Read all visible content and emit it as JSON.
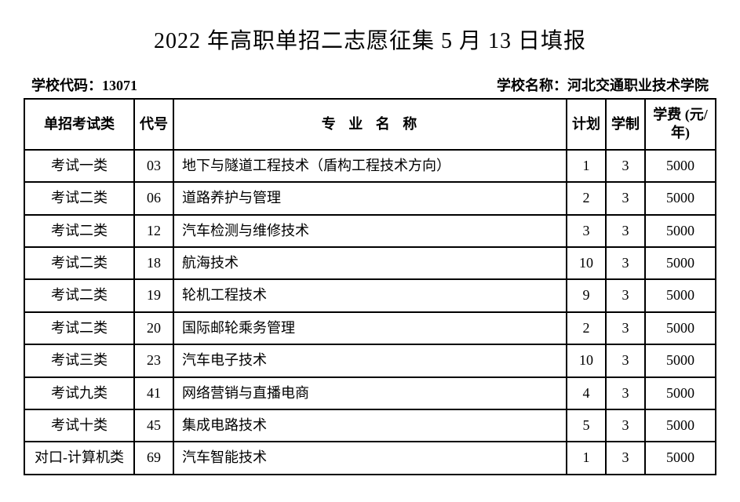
{
  "title": "2022 年高职单招二志愿征集 5 月 13 日填报",
  "info": {
    "school_code_label": "学校代码：",
    "school_code": "13071",
    "school_name_label": "学校名称：",
    "school_name": "河北交通职业技术学院"
  },
  "table": {
    "headers": {
      "exam_type": "单招考试类",
      "code": "代号",
      "major_name": "专 业 名 称",
      "plan": "计划",
      "duration": "学制",
      "tuition": "学费 (元/年)"
    },
    "rows": [
      {
        "exam_type": "考试一类",
        "code": "03",
        "major_name": "地下与隧道工程技术（盾构工程技术方向）",
        "plan": "1",
        "duration": "3",
        "tuition": "5000"
      },
      {
        "exam_type": "考试二类",
        "code": "06",
        "major_name": "道路养护与管理",
        "plan": "2",
        "duration": "3",
        "tuition": "5000"
      },
      {
        "exam_type": "考试二类",
        "code": "12",
        "major_name": "汽车检测与维修技术",
        "plan": "3",
        "duration": "3",
        "tuition": "5000"
      },
      {
        "exam_type": "考试二类",
        "code": "18",
        "major_name": "航海技术",
        "plan": "10",
        "duration": "3",
        "tuition": "5000"
      },
      {
        "exam_type": "考试二类",
        "code": "19",
        "major_name": "轮机工程技术",
        "plan": "9",
        "duration": "3",
        "tuition": "5000"
      },
      {
        "exam_type": "考试二类",
        "code": "20",
        "major_name": "国际邮轮乘务管理",
        "plan": "2",
        "duration": "3",
        "tuition": "5000"
      },
      {
        "exam_type": "考试三类",
        "code": "23",
        "major_name": "汽车电子技术",
        "plan": "10",
        "duration": "3",
        "tuition": "5000"
      },
      {
        "exam_type": "考试九类",
        "code": "41",
        "major_name": "网络营销与直播电商",
        "plan": "4",
        "duration": "3",
        "tuition": "5000"
      },
      {
        "exam_type": "考试十类",
        "code": "45",
        "major_name": "集成电路技术",
        "plan": "5",
        "duration": "3",
        "tuition": "5000"
      },
      {
        "exam_type": "对口-计算机类",
        "code": "69",
        "major_name": "汽车智能技术",
        "plan": "1",
        "duration": "3",
        "tuition": "5000"
      }
    ]
  },
  "style": {
    "border_color": "#000000",
    "background_color": "#ffffff",
    "text_color": "#000000",
    "title_fontsize": 28,
    "cell_fontsize": 18,
    "info_fontsize": 18
  }
}
